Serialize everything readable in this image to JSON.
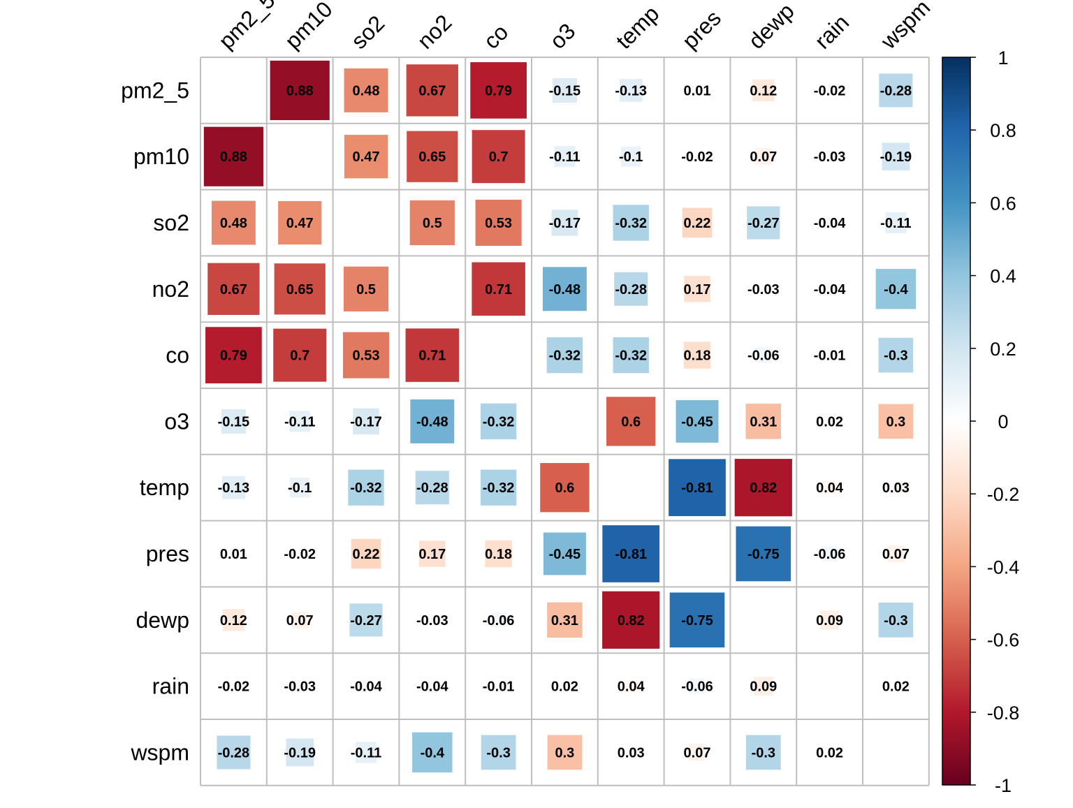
{
  "chart_data": {
    "type": "heatmap",
    "title": "",
    "variables": [
      "pm2_5",
      "pm10",
      "so2",
      "no2",
      "co",
      "o3",
      "temp",
      "pres",
      "dewp",
      "rain",
      "wspm"
    ],
    "matrix": [
      [
        null,
        0.88,
        0.48,
        0.67,
        0.79,
        -0.15,
        -0.13,
        0.01,
        0.12,
        -0.02,
        -0.28
      ],
      [
        0.88,
        null,
        0.47,
        0.65,
        0.7,
        -0.11,
        -0.1,
        -0.02,
        0.07,
        -0.03,
        -0.19
      ],
      [
        0.48,
        0.47,
        null,
        0.5,
        0.53,
        -0.17,
        -0.32,
        0.22,
        -0.27,
        -0.04,
        -0.11
      ],
      [
        0.67,
        0.65,
        0.5,
        null,
        0.71,
        -0.48,
        -0.28,
        0.17,
        -0.03,
        -0.04,
        -0.4
      ],
      [
        0.79,
        0.7,
        0.53,
        0.71,
        null,
        -0.32,
        -0.32,
        0.18,
        -0.06,
        -0.01,
        -0.3
      ],
      [
        -0.15,
        -0.11,
        -0.17,
        -0.48,
        -0.32,
        null,
        0.6,
        -0.45,
        0.31,
        0.02,
        0.3
      ],
      [
        -0.13,
        -0.1,
        -0.32,
        -0.28,
        -0.32,
        0.6,
        null,
        -0.81,
        0.82,
        0.04,
        0.03
      ],
      [
        0.01,
        -0.02,
        0.22,
        0.17,
        0.18,
        -0.45,
        -0.81,
        null,
        -0.75,
        -0.06,
        0.07
      ],
      [
        0.12,
        0.07,
        -0.27,
        -0.03,
        -0.06,
        0.31,
        0.82,
        -0.75,
        null,
        0.09,
        -0.3
      ],
      [
        -0.02,
        -0.03,
        -0.04,
        -0.04,
        -0.01,
        0.02,
        0.04,
        -0.06,
        0.09,
        null,
        0.02
      ],
      [
        -0.28,
        -0.19,
        -0.11,
        -0.4,
        -0.3,
        0.3,
        0.03,
        0.07,
        -0.3,
        0.02,
        null
      ]
    ],
    "colorbar": {
      "range": [
        -1,
        1
      ],
      "ticks": [
        1,
        0.8,
        0.6,
        0.4,
        0.2,
        0,
        -0.2,
        -0.4,
        -0.6,
        -0.8,
        -1
      ],
      "tick_labels": [
        "1",
        "0.8",
        "0.6",
        "0.4",
        "0.2",
        "0",
        "-0.2",
        "-0.4",
        "-0.6",
        "-0.8",
        "-1"
      ],
      "placement": "right"
    },
    "palette": [
      "#67001F",
      "#B2182B",
      "#D6604D",
      "#F4A582",
      "#FDDBC7",
      "#FFFFFF",
      "#D1E5F0",
      "#92C5DE",
      "#4393C3",
      "#2166AC",
      "#053061"
    ],
    "grid": true,
    "legend": "colorbar-right"
  }
}
